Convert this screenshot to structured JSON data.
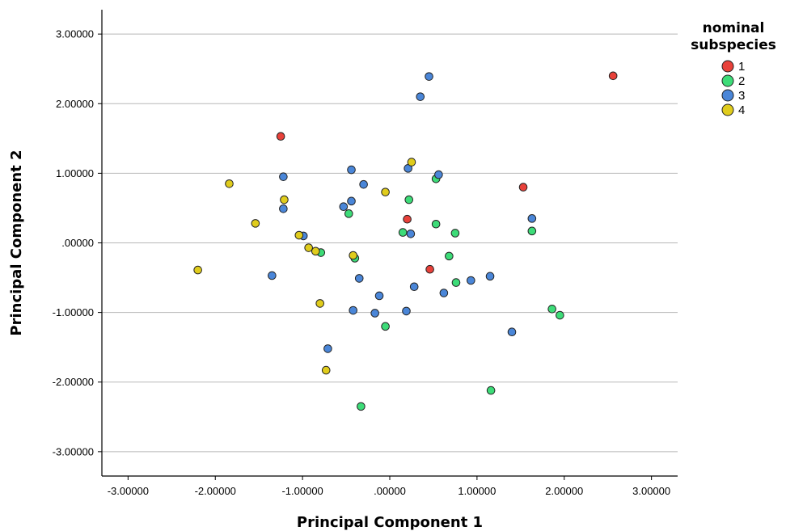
{
  "chart_data": {
    "type": "scatter",
    "xlabel": "Principal Component 1",
    "ylabel": "Principal Component 2",
    "xlim": [
      -3.3,
      3.3
    ],
    "ylim": [
      -3.35,
      3.35
    ],
    "x_ticks": [
      -3,
      -2,
      -1,
      0,
      1,
      2,
      3
    ],
    "y_ticks": [
      -3,
      -2,
      -1,
      0,
      1,
      2,
      3
    ],
    "x_tick_labels": [
      "-3.00000",
      "-2.00000",
      "-1.00000",
      ".00000",
      "1.00000",
      "2.00000",
      "3.00000"
    ],
    "y_tick_labels": [
      "-3.00000",
      "-2.00000",
      "-1.00000",
      ".00000",
      "1.00000",
      "2.00000",
      "3.00000"
    ],
    "grid": "horizontal",
    "legend": {
      "title": "nominal subspecies",
      "title_lines": [
        "nominal",
        "subspecies"
      ],
      "placement": "right"
    },
    "series": [
      {
        "name": "1",
        "color": "#e8413a",
        "points": [
          [
            -1.25,
            1.53
          ],
          [
            2.56,
            2.4
          ],
          [
            1.53,
            0.8
          ],
          [
            0.2,
            0.34
          ],
          [
            0.46,
            -0.38
          ]
        ]
      },
      {
        "name": "2",
        "color": "#3ddc78",
        "points": [
          [
            -0.47,
            0.42
          ],
          [
            0.22,
            0.62
          ],
          [
            0.53,
            0.92
          ],
          [
            0.15,
            0.15
          ],
          [
            0.53,
            0.27
          ],
          [
            0.75,
            0.14
          ],
          [
            1.63,
            0.17
          ],
          [
            -0.79,
            -0.14
          ],
          [
            -0.4,
            -0.22
          ],
          [
            0.68,
            -0.19
          ],
          [
            0.76,
            -0.57
          ],
          [
            1.86,
            -0.95
          ],
          [
            1.95,
            -1.04
          ],
          [
            -0.05,
            -1.2
          ],
          [
            1.16,
            -2.12
          ],
          [
            -0.33,
            -2.35
          ]
        ]
      },
      {
        "name": "3",
        "color": "#4a86d8",
        "points": [
          [
            0.45,
            2.39
          ],
          [
            0.35,
            2.1
          ],
          [
            -0.44,
            1.05
          ],
          [
            0.21,
            1.07
          ],
          [
            0.56,
            0.98
          ],
          [
            -1.22,
            0.95
          ],
          [
            -0.3,
            0.84
          ],
          [
            -0.44,
            0.6
          ],
          [
            -0.53,
            0.52
          ],
          [
            -1.22,
            0.49
          ],
          [
            1.63,
            0.35
          ],
          [
            0.24,
            0.13
          ],
          [
            -0.99,
            0.1
          ],
          [
            -1.35,
            -0.47
          ],
          [
            -0.35,
            -0.51
          ],
          [
            1.15,
            -0.48
          ],
          [
            0.93,
            -0.54
          ],
          [
            0.28,
            -0.63
          ],
          [
            0.62,
            -0.72
          ],
          [
            -0.12,
            -0.76
          ],
          [
            -0.42,
            -0.97
          ],
          [
            0.19,
            -0.98
          ],
          [
            -0.17,
            -1.01
          ],
          [
            1.4,
            -1.28
          ],
          [
            -0.71,
            -1.52
          ]
        ]
      },
      {
        "name": "4",
        "color": "#e0cc1c",
        "points": [
          [
            0.25,
            1.16
          ],
          [
            -1.84,
            0.85
          ],
          [
            -0.05,
            0.73
          ],
          [
            -1.21,
            0.62
          ],
          [
            -1.54,
            0.28
          ],
          [
            -1.04,
            0.11
          ],
          [
            -0.93,
            -0.07
          ],
          [
            -0.85,
            -0.12
          ],
          [
            -0.42,
            -0.18
          ],
          [
            -2.2,
            -0.39
          ],
          [
            -0.8,
            -0.87
          ],
          [
            -0.73,
            -1.83
          ]
        ]
      }
    ]
  }
}
